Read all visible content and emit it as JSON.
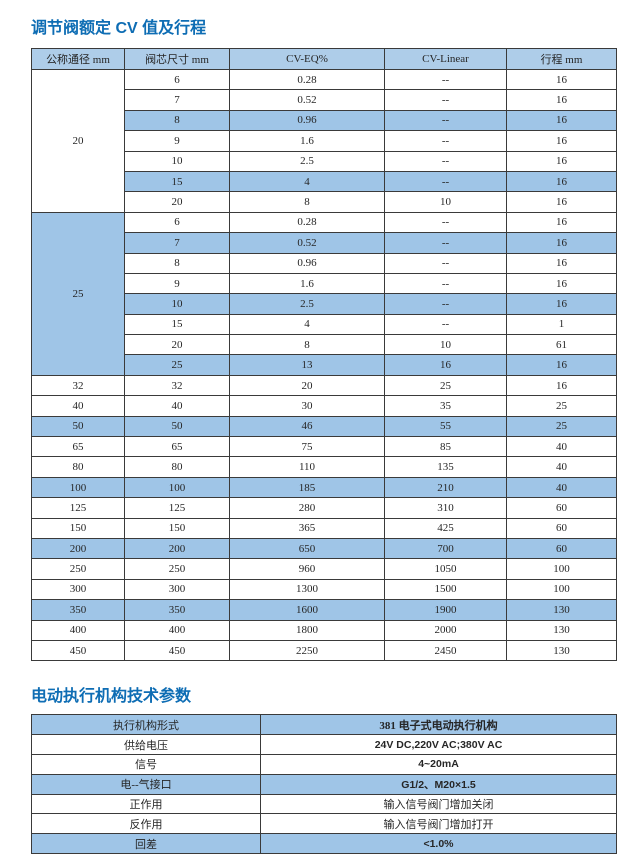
{
  "colors": {
    "title": "#0e6db4",
    "table_header_bg": "#aecde9",
    "row_highlight_bg": "#9fc5e7",
    "border": "#3a3a3a",
    "text": "#262626"
  },
  "section1": {
    "title": "调节阀额定 CV 值及行程",
    "table": {
      "headers": [
        "公称通径 mm",
        "阀芯尺寸 mm",
        "CV-EQ%",
        "CV-Linear",
        "行程 mm"
      ],
      "groups": [
        {
          "label": "20",
          "highlighted": false,
          "rows": [
            {
              "cells": [
                "6",
                "0.28",
                "--",
                "16"
              ],
              "highlight": false
            },
            {
              "cells": [
                "7",
                "0.52",
                "--",
                "16"
              ],
              "highlight": false
            },
            {
              "cells": [
                "8",
                "0.96",
                "--",
                "16"
              ],
              "highlight": true
            },
            {
              "cells": [
                "9",
                "1.6",
                "--",
                "16"
              ],
              "highlight": false
            },
            {
              "cells": [
                "10",
                "2.5",
                "--",
                "16"
              ],
              "highlight": false
            },
            {
              "cells": [
                "15",
                "4",
                "--",
                "16"
              ],
              "highlight": true
            },
            {
              "cells": [
                "20",
                "8",
                "10",
                "16"
              ],
              "highlight": false
            }
          ]
        },
        {
          "label": "25",
          "highlighted": true,
          "rows": [
            {
              "cells": [
                "6",
                "0.28",
                "--",
                "16"
              ],
              "highlight": false
            },
            {
              "cells": [
                "7",
                "0.52",
                "--",
                "16"
              ],
              "highlight": true
            },
            {
              "cells": [
                "8",
                "0.96",
                "--",
                "16"
              ],
              "highlight": false
            },
            {
              "cells": [
                "9",
                "1.6",
                "--",
                "16"
              ],
              "highlight": false
            },
            {
              "cells": [
                "10",
                "2.5",
                "--",
                "16"
              ],
              "highlight": true
            },
            {
              "cells": [
                "15",
                "4",
                "--",
                "1"
              ],
              "highlight": false
            },
            {
              "cells": [
                "20",
                "8",
                "10",
                "61"
              ],
              "highlight": false
            },
            {
              "cells": [
                "25",
                "13",
                "16",
                "16"
              ],
              "highlight": true
            }
          ]
        }
      ],
      "flat_rows": [
        {
          "cells": [
            "32",
            "32",
            "20",
            "25",
            "16"
          ],
          "highlight": false
        },
        {
          "cells": [
            "40",
            "40",
            "30",
            "35",
            "25"
          ],
          "highlight": false
        },
        {
          "cells": [
            "50",
            "50",
            "46",
            "55",
            "25"
          ],
          "highlight": true
        },
        {
          "cells": [
            "65",
            "65",
            "75",
            "85",
            "40"
          ],
          "highlight": false
        },
        {
          "cells": [
            "80",
            "80",
            "110",
            "135",
            "40"
          ],
          "highlight": false
        },
        {
          "cells": [
            "100",
            "100",
            "185",
            "210",
            "40"
          ],
          "highlight": true
        },
        {
          "cells": [
            "125",
            "125",
            "280",
            "310",
            "60"
          ],
          "highlight": false
        },
        {
          "cells": [
            "150",
            "150",
            "365",
            "425",
            "60"
          ],
          "highlight": false
        },
        {
          "cells": [
            "200",
            "200",
            "650",
            "700",
            "60"
          ],
          "highlight": true
        },
        {
          "cells": [
            "250",
            "250",
            "960",
            "1050",
            "100"
          ],
          "highlight": false
        },
        {
          "cells": [
            "300",
            "300",
            "1300",
            "1500",
            "100"
          ],
          "highlight": false
        },
        {
          "cells": [
            "350",
            "350",
            "1600",
            "1900",
            "130"
          ],
          "highlight": true
        },
        {
          "cells": [
            "400",
            "400",
            "1800",
            "2000",
            "130"
          ],
          "highlight": false
        },
        {
          "cells": [
            "450",
            "450",
            "2250",
            "2450",
            "130"
          ],
          "highlight": false
        }
      ]
    }
  },
  "section2": {
    "title": "电动执行机构技术参数",
    "table": {
      "rows": [
        {
          "label": "执行机构形式",
          "value": "381 电子式电动执行机构",
          "highlight": true
        },
        {
          "label": "供给电压",
          "value": "24V DC,220V AC;380V AC",
          "highlight": false
        },
        {
          "label": "信号",
          "value": "4~20mA",
          "highlight": false
        },
        {
          "label": "电--气接口",
          "value": "G1/2、M20×1.5",
          "highlight": true
        },
        {
          "label": "正作用",
          "value": "输入信号阀门增加关闭",
          "highlight": false
        },
        {
          "label": "反作用",
          "value": "输入信号阀门增加打开",
          "highlight": false
        },
        {
          "label": "回差",
          "value": "<1.0%",
          "highlight": true
        }
      ]
    }
  }
}
